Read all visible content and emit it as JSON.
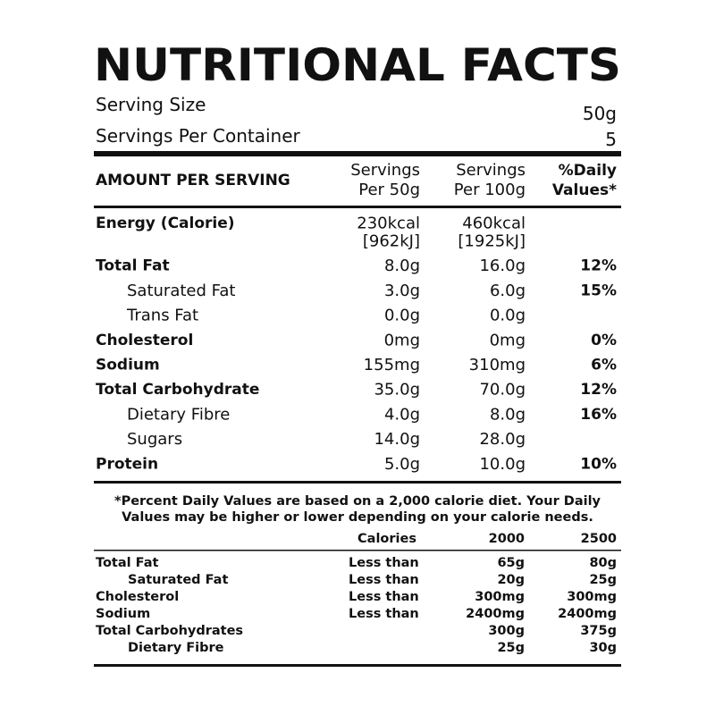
{
  "header": {
    "title": "NUTRITIONAL FACTS",
    "serving_size_label": "Serving Size",
    "serving_size_value": "50g",
    "servings_per_container_label": "Servings Per Container",
    "servings_per_container_value": "5"
  },
  "table": {
    "columns": [
      "AMOUNT PER SERVING",
      [
        "Servings",
        "Per 50g"
      ],
      [
        "Servings",
        "Per 100g"
      ],
      [
        "%Daily",
        "Values*"
      ]
    ],
    "rows": [
      {
        "label": "Energy (Calorie)",
        "per_50g": [
          "230kcal",
          "[962kJ]"
        ],
        "per_100g": [
          "460kcal",
          "[1925kJ]"
        ]
      },
      {
        "label": "Total Fat",
        "per_50g": "8.0g",
        "per_100g": "16.0g",
        "daily": "12%",
        "sub_rows": [
          {
            "label": "Saturated Fat",
            "per_50g": "3.0g",
            "per_100g": "6.0g",
            "daily": "15%"
          },
          {
            "label": "Trans Fat",
            "per_50g": "0.0g",
            "per_100g": "0.0g"
          }
        ]
      },
      {
        "label": "Cholesterol",
        "per_50g": "0mg",
        "per_100g": "0mg",
        "daily": "0%"
      },
      {
        "label": "Sodium",
        "per_50g": "155mg",
        "per_100g": "310mg",
        "daily": "6%"
      },
      {
        "label": "Total Carbohydrate",
        "per_50g": "35.0g",
        "per_100g": "70.0g",
        "daily": "12%",
        "sub_rows": [
          {
            "label": "Dietary Fibre",
            "per_50g": "4.0g",
            "per_100g": "8.0g",
            "daily": "16%"
          },
          {
            "label": "Sugars",
            "per_50g": "14.0g",
            "per_100g": "28.0g"
          }
        ]
      },
      {
        "label": "Protein",
        "per_50g": "5.0g",
        "per_100g": "10.0g",
        "daily": "10%"
      }
    ]
  },
  "footnote": [
    "*Percent Daily Values are based on a 2,000 calorie diet. Your Daily",
    "Values may be higher or lower depending on your calorie needs."
  ],
  "reference": {
    "columns": [
      "Calories",
      "2000",
      "2500"
    ],
    "rows": [
      {
        "label": "Total Fat",
        "qualifier": "Less than",
        "cal_2000": "65g",
        "cal_2500": "80g",
        "sub_rows": [
          {
            "label": "Saturated Fat",
            "qualifier": "Less than",
            "cal_2000": "20g",
            "cal_2500": "25g"
          }
        ]
      },
      {
        "label": "Cholesterol",
        "qualifier": "Less than",
        "cal_2000": "300mg",
        "cal_2500": "300mg"
      },
      {
        "label": "Sodium",
        "qualifier": "Less than",
        "cal_2000": "2400mg",
        "cal_2500": "2400mg"
      },
      {
        "label": "Total Carbohydrates",
        "cal_2000": "300g",
        "cal_2500": "375g",
        "sub_rows": [
          {
            "label": "Dietary Fibre",
            "cal_2000": "25g",
            "cal_2500": "30g"
          }
        ]
      }
    ]
  }
}
